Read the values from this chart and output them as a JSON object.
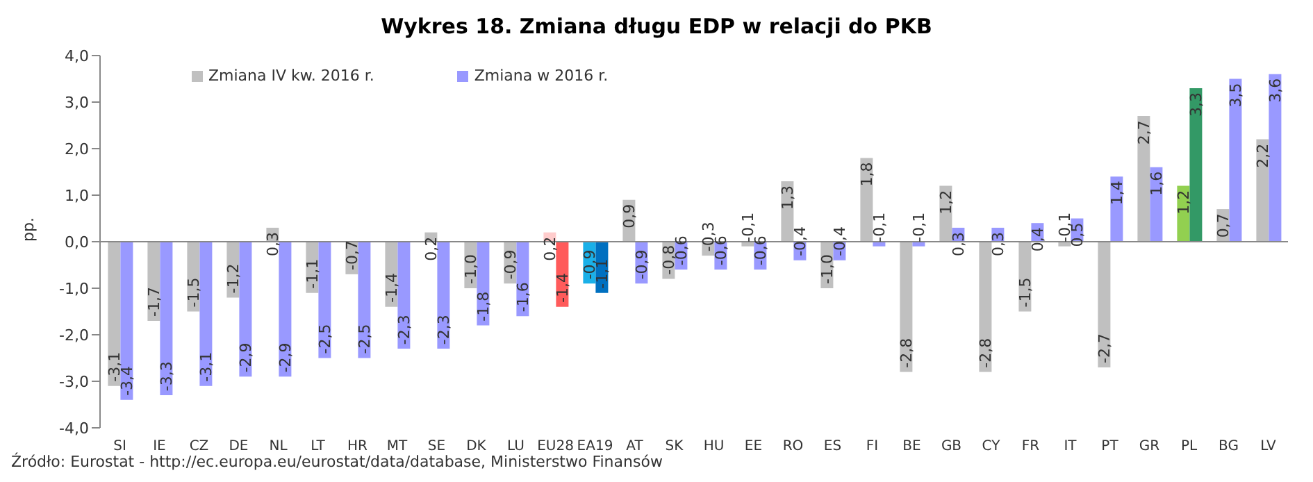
{
  "chart_data": {
    "type": "bar",
    "title": "Wykres 18. Zmiana długu EDP w relacji do PKB",
    "ylabel": "pp.",
    "categories": [
      "SI",
      "IE",
      "CZ",
      "DE",
      "NL",
      "LT",
      "HR",
      "MT",
      "SE",
      "DK",
      "LU",
      "EU28",
      "EA19",
      "AT",
      "SK",
      "HU",
      "EE",
      "RO",
      "ES",
      "FI",
      "BE",
      "GB",
      "CY",
      "FR",
      "IT",
      "PT",
      "GR",
      "PL",
      "BG",
      "LV"
    ],
    "series": [
      {
        "name": "Zmiana IV kw. 2016 r.",
        "color": "#c0c0c0",
        "colors": [
          "#c0c0c0",
          "#c0c0c0",
          "#c0c0c0",
          "#c0c0c0",
          "#c0c0c0",
          "#c0c0c0",
          "#c0c0c0",
          "#c0c0c0",
          "#c0c0c0",
          "#c0c0c0",
          "#c0c0c0",
          "#ffcccc",
          "#1ab0e8",
          "#c0c0c0",
          "#c0c0c0",
          "#c0c0c0",
          "#c0c0c0",
          "#c0c0c0",
          "#c0c0c0",
          "#c0c0c0",
          "#c0c0c0",
          "#c0c0c0",
          "#c0c0c0",
          "#c0c0c0",
          "#c0c0c0",
          "#c0c0c0",
          "#c0c0c0",
          "#92d050",
          "#c0c0c0",
          "#c0c0c0"
        ],
        "values": [
          -3.1,
          -1.7,
          -1.5,
          -1.2,
          0.3,
          -1.1,
          -0.7,
          -1.4,
          0.2,
          -1.0,
          -0.9,
          0.2,
          -0.9,
          0.9,
          -0.8,
          -0.3,
          -0.1,
          1.3,
          -1.0,
          1.8,
          -2.8,
          1.2,
          -2.8,
          -1.5,
          -0.1,
          -2.7,
          2.7,
          1.2,
          0.7,
          2.2
        ],
        "value_labels": [
          "-3,1",
          "-1,7",
          "-1,5",
          "-1,2",
          "0,3",
          "-1,1",
          "-0,7",
          "-1,4",
          "0,2",
          "-1,0",
          "-0,9",
          "0,2",
          "-0,9",
          "0,9",
          "-0,8",
          "-0,3",
          "-0,1",
          "1,3",
          "-1,0",
          "1,8",
          "-2,8",
          "1,2",
          "-2,8",
          "-1,5",
          "-0,1",
          "-2,7",
          "2,7",
          "1,2",
          "0,7",
          "2,2"
        ]
      },
      {
        "name": "Zmiana w 2016 r.",
        "color": "#9999ff",
        "colors": [
          "#9999ff",
          "#9999ff",
          "#9999ff",
          "#9999ff",
          "#9999ff",
          "#9999ff",
          "#9999ff",
          "#9999ff",
          "#9999ff",
          "#9999ff",
          "#9999ff",
          "#ff5b5b",
          "#0070c0",
          "#9999ff",
          "#9999ff",
          "#9999ff",
          "#9999ff",
          "#9999ff",
          "#9999ff",
          "#9999ff",
          "#9999ff",
          "#9999ff",
          "#9999ff",
          "#9999ff",
          "#9999ff",
          "#9999ff",
          "#9999ff",
          "#339966",
          "#9999ff",
          "#9999ff"
        ],
        "values": [
          -3.4,
          -3.3,
          -3.1,
          -2.9,
          -2.9,
          -2.5,
          -2.5,
          -2.3,
          -2.3,
          -1.8,
          -1.6,
          -1.4,
          -1.1,
          -0.9,
          -0.6,
          -0.6,
          -0.6,
          -0.4,
          -0.4,
          -0.1,
          -0.1,
          0.3,
          0.3,
          0.4,
          0.5,
          1.4,
          1.6,
          3.3,
          3.5,
          3.6
        ],
        "value_labels": [
          "-3,4",
          "-3,3",
          "-3,1",
          "-2,9",
          "-2,9",
          "-2,5",
          "-2,5",
          "-2,3",
          "-2,3",
          "-1,8",
          "-1,6",
          "-1,4",
          "-1,1",
          "-0,9",
          "-0,6",
          "-0,6",
          "-0,6",
          "-0,4",
          "-0,4",
          "-0,1",
          "-0,1",
          "0,3",
          "0,3",
          "0,4",
          "0,5",
          "1,4",
          "1,6",
          "3,3",
          "3,5",
          "3,6"
        ]
      }
    ],
    "ylim": [
      -4,
      4
    ],
    "yticks": [
      {
        "value": -4,
        "label": "-4,0"
      },
      {
        "value": -3,
        "label": "-3,0"
      },
      {
        "value": -2,
        "label": "-2,0"
      },
      {
        "value": -1,
        "label": "-1,0"
      },
      {
        "value": 0,
        "label": "0,0"
      },
      {
        "value": 1,
        "label": "1,0"
      },
      {
        "value": 2,
        "label": "2,0"
      },
      {
        "value": 3,
        "label": "3,0"
      },
      {
        "value": 4,
        "label": "4,0"
      }
    ],
    "legend": "top left",
    "annotations": [
      "Źródło: Eurostat - http://ec.europa.eu/eurostat/data/database, Ministerstwo Finansów"
    ]
  }
}
